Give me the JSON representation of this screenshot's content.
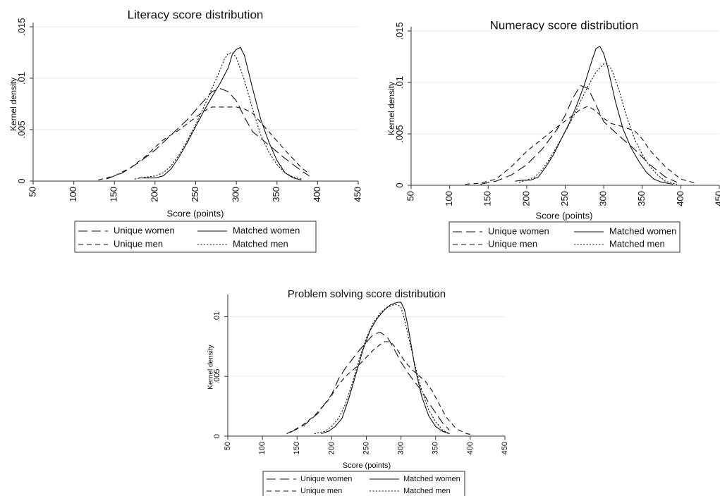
{
  "chart_data": [
    {
      "type": "line",
      "title": "Literacy score distribution",
      "xlabel": "Score (points)",
      "ylabel": "Kernel density",
      "xlim": [
        50,
        450
      ],
      "ylim": [
        0,
        0.015
      ],
      "xticks": [
        "50",
        "100",
        "150",
        "200",
        "250",
        "300",
        "350",
        "400",
        "450"
      ],
      "yticks": [
        "0",
        ".005",
        ".01",
        ".015"
      ],
      "legend": [
        "Unique women",
        "Matched women",
        "Unique men",
        "Matched men"
      ],
      "series": [
        {
          "name": "Unique women",
          "style": "longdash",
          "x": [
            140,
            160,
            180,
            200,
            220,
            240,
            260,
            270,
            280,
            290,
            300,
            310,
            320,
            340,
            360,
            380,
            390
          ],
          "y": [
            0.0002,
            0.0008,
            0.0018,
            0.003,
            0.0045,
            0.006,
            0.0078,
            0.0087,
            0.009,
            0.0087,
            0.0078,
            0.0062,
            0.0048,
            0.0035,
            0.0022,
            0.001,
            0.0005
          ]
        },
        {
          "name": "Matched women",
          "style": "solid",
          "x": [
            180,
            200,
            210,
            220,
            230,
            240,
            250,
            260,
            270,
            280,
            290,
            295,
            300,
            305,
            310,
            320,
            330,
            340,
            350,
            360,
            370,
            380
          ],
          "y": [
            0.0003,
            0.0003,
            0.0005,
            0.0012,
            0.0024,
            0.0038,
            0.0053,
            0.0068,
            0.0082,
            0.0095,
            0.011,
            0.0123,
            0.0128,
            0.013,
            0.0122,
            0.009,
            0.006,
            0.0038,
            0.002,
            0.0008,
            0.0003,
            0.0001
          ]
        },
        {
          "name": "Unique men",
          "style": "shortdash",
          "x": [
            130,
            150,
            170,
            190,
            200,
            210,
            230,
            250,
            260,
            270,
            280,
            290,
            300,
            310,
            320,
            340,
            360,
            380,
            390
          ],
          "y": [
            0.0001,
            0.0005,
            0.0013,
            0.0025,
            0.0033,
            0.004,
            0.005,
            0.0062,
            0.0068,
            0.0072,
            0.0072,
            0.0072,
            0.0072,
            0.007,
            0.0066,
            0.0048,
            0.003,
            0.0013,
            0.0007
          ]
        },
        {
          "name": "Matched men",
          "style": "dot",
          "x": [
            175,
            190,
            200,
            210,
            220,
            230,
            240,
            250,
            260,
            270,
            280,
            285,
            290,
            295,
            300,
            310,
            320,
            330,
            340,
            350,
            360,
            370,
            380
          ],
          "y": [
            0.0002,
            0.0004,
            0.0005,
            0.0008,
            0.0015,
            0.0026,
            0.004,
            0.0055,
            0.0072,
            0.009,
            0.0108,
            0.0118,
            0.0124,
            0.0125,
            0.012,
            0.0098,
            0.007,
            0.0045,
            0.0028,
            0.0016,
            0.0008,
            0.0004,
            0.0002
          ]
        }
      ]
    },
    {
      "type": "line",
      "title": "Numeracy score distribution",
      "xlabel": "Score (points)",
      "ylabel": "Kernel density",
      "xlim": [
        50,
        450
      ],
      "ylim": [
        0,
        0.015
      ],
      "xticks": [
        "50",
        "100",
        "150",
        "200",
        "250",
        "300",
        "350",
        "400",
        "450"
      ],
      "yticks": [
        "0",
        ".005",
        ".01",
        ".015"
      ],
      "legend": [
        "Unique women",
        "Matched women",
        "Unique men",
        "Matched men"
      ],
      "series": [
        {
          "name": "Unique women",
          "style": "longdash",
          "x": [
            140,
            160,
            180,
            200,
            220,
            240,
            250,
            260,
            270,
            280,
            290,
            300,
            310,
            320,
            340,
            360,
            380,
            395
          ],
          "y": [
            0.0001,
            0.0004,
            0.001,
            0.002,
            0.0035,
            0.0055,
            0.0068,
            0.0085,
            0.0097,
            0.0094,
            0.0078,
            0.0062,
            0.0055,
            0.0048,
            0.0035,
            0.002,
            0.0008,
            0.0003
          ]
        },
        {
          "name": "Matched women",
          "style": "solid",
          "x": [
            185,
            195,
            205,
            215,
            225,
            235,
            245,
            255,
            265,
            275,
            285,
            290,
            295,
            300,
            305,
            315,
            325,
            335,
            345,
            355,
            365,
            375,
            390
          ],
          "y": [
            0.0004,
            0.0005,
            0.0005,
            0.0008,
            0.0018,
            0.003,
            0.0045,
            0.006,
            0.0078,
            0.0098,
            0.0122,
            0.0133,
            0.0135,
            0.0128,
            0.0115,
            0.0082,
            0.0055,
            0.0037,
            0.0024,
            0.0013,
            0.0006,
            0.0003,
            0.0001
          ]
        },
        {
          "name": "Unique men",
          "style": "shortdash",
          "x": [
            120,
            140,
            160,
            180,
            200,
            220,
            240,
            260,
            270,
            280,
            290,
            300,
            310,
            320,
            340,
            350,
            360,
            380,
            400,
            420
          ],
          "y": [
            0.0001,
            0.0002,
            0.0006,
            0.0018,
            0.0033,
            0.0045,
            0.0057,
            0.0068,
            0.0074,
            0.0077,
            0.0072,
            0.0065,
            0.006,
            0.0058,
            0.0053,
            0.0045,
            0.0034,
            0.0018,
            0.0006,
            0.0002
          ]
        },
        {
          "name": "Matched men",
          "style": "dot",
          "x": [
            190,
            200,
            210,
            220,
            230,
            240,
            250,
            260,
            270,
            280,
            290,
            300,
            305,
            310,
            320,
            330,
            340,
            350,
            360,
            370,
            380,
            395
          ],
          "y": [
            0.0003,
            0.0005,
            0.0008,
            0.0015,
            0.0026,
            0.0039,
            0.0052,
            0.0066,
            0.0082,
            0.0097,
            0.011,
            0.0118,
            0.0118,
            0.0113,
            0.0092,
            0.0066,
            0.0045,
            0.003,
            0.0018,
            0.001,
            0.0004,
            0.0001
          ]
        }
      ]
    },
    {
      "type": "line",
      "title": "Problem solving score distribution",
      "xlabel": "Score (points)",
      "ylabel": "Kernel density",
      "xlim": [
        50,
        450
      ],
      "ylim": [
        0,
        0.0115
      ],
      "xticks": [
        "50",
        "100",
        "150",
        "200",
        "250",
        "300",
        "350",
        "400",
        "450"
      ],
      "yticks": [
        "0",
        ".005",
        ".01"
      ],
      "legend": [
        "Unique women",
        "Matched women",
        "Unique men",
        "Matched men"
      ],
      "series": [
        {
          "name": "Unique women",
          "style": "longdash",
          "x": [
            140,
            160,
            180,
            200,
            210,
            220,
            240,
            260,
            270,
            280,
            290,
            300,
            310,
            320,
            330,
            340,
            360,
            370
          ],
          "y": [
            0.0003,
            0.0009,
            0.0019,
            0.0035,
            0.0048,
            0.0057,
            0.0072,
            0.0085,
            0.0087,
            0.0083,
            0.0073,
            0.0062,
            0.0053,
            0.0045,
            0.0038,
            0.0028,
            0.0011,
            0.0005
          ]
        },
        {
          "name": "Matched women",
          "style": "solid",
          "x": [
            185,
            195,
            205,
            215,
            225,
            235,
            245,
            255,
            265,
            275,
            285,
            290,
            295,
            300,
            305,
            310,
            320,
            330,
            340,
            350,
            360,
            370
          ],
          "y": [
            0.0002,
            0.0004,
            0.0008,
            0.0015,
            0.0032,
            0.0052,
            0.0072,
            0.0088,
            0.0098,
            0.0105,
            0.011,
            0.0111,
            0.0112,
            0.0112,
            0.0106,
            0.0092,
            0.0058,
            0.0033,
            0.0017,
            0.0008,
            0.0004,
            0.0002
          ]
        },
        {
          "name": "Unique men",
          "style": "shortdash",
          "x": [
            135,
            155,
            175,
            195,
            210,
            220,
            240,
            260,
            275,
            285,
            295,
            305,
            315,
            325,
            335,
            345,
            355,
            365,
            380,
            395,
            405
          ],
          "y": [
            0.0002,
            0.0008,
            0.0017,
            0.003,
            0.0043,
            0.005,
            0.006,
            0.0072,
            0.0079,
            0.0079,
            0.0072,
            0.0063,
            0.0056,
            0.0051,
            0.0046,
            0.0038,
            0.0027,
            0.0016,
            0.0006,
            0.0002,
            0.0001
          ]
        },
        {
          "name": "Matched men",
          "style": "dot",
          "x": [
            175,
            190,
            200,
            210,
            220,
            230,
            240,
            250,
            260,
            270,
            280,
            290,
            295,
            300,
            305,
            310,
            320,
            330,
            340,
            350,
            360,
            370
          ],
          "y": [
            0.0002,
            0.0004,
            0.0008,
            0.0015,
            0.0027,
            0.0045,
            0.0065,
            0.0082,
            0.0095,
            0.0103,
            0.0108,
            0.011,
            0.011,
            0.0108,
            0.0098,
            0.0085,
            0.006,
            0.0038,
            0.0022,
            0.0012,
            0.0005,
            0.0002
          ]
        }
      ]
    }
  ]
}
